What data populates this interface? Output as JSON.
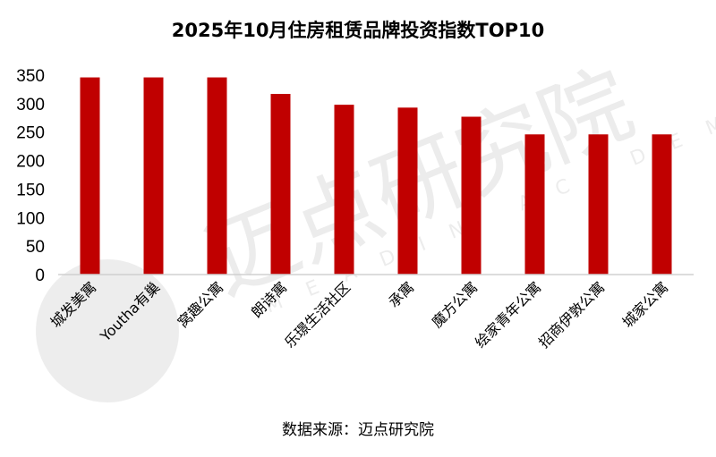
{
  "chart_data": {
    "type": "bar",
    "title": "2025年10月住房租赁品牌投资指数TOP10",
    "categories": [
      "城发美寓",
      "Youtha有巢",
      "窝趣公寓",
      "朗诗寓",
      "乐璟生活社区",
      "承寓",
      "魔方公寓",
      "绘家青年公寓",
      "招商伊敦公寓",
      "城家公寓"
    ],
    "values": [
      346,
      346,
      346,
      317,
      298,
      293,
      277,
      246,
      246,
      246
    ],
    "ylim": [
      0,
      350
    ],
    "yticks": [
      0,
      50,
      100,
      150,
      200,
      250,
      300,
      350
    ],
    "xlabel": "",
    "ylabel": "",
    "grid": false,
    "legend": "none",
    "bar_color": "#C00000"
  },
  "source": "数据来源：迈点研究院",
  "watermark": {
    "text": "迈点研究院",
    "subtext": "MEADIN ACADEMY"
  }
}
